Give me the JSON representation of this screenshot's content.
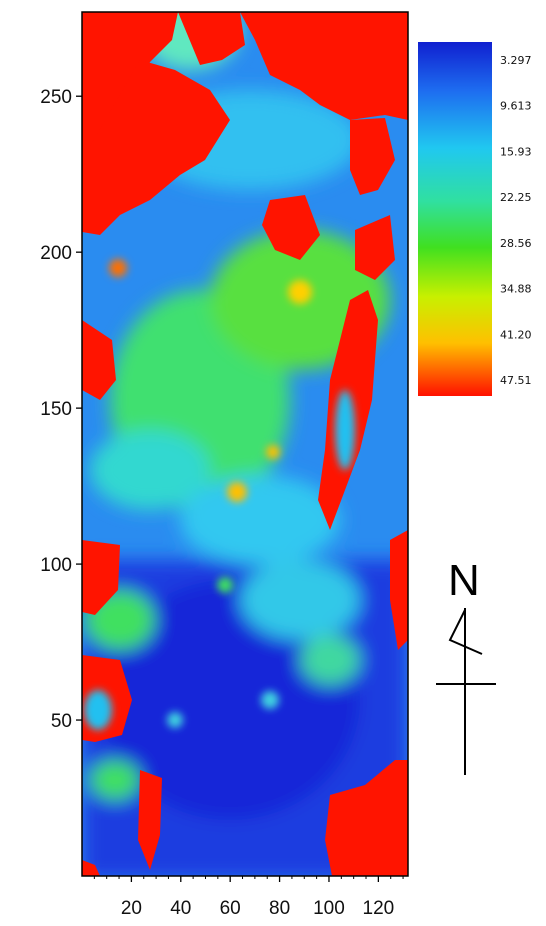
{
  "chart_data": {
    "type": "heatmap",
    "title": "",
    "xlabel": "",
    "ylabel": "",
    "xlim": [
      0,
      132
    ],
    "ylim": [
      0,
      277
    ],
    "x_ticks": [
      20,
      40,
      60,
      80,
      100,
      120
    ],
    "x_tick_labels": [
      "20",
      "40",
      "60",
      "80",
      "100",
      "120"
    ],
    "y_ticks": [
      50,
      100,
      150,
      200,
      250
    ],
    "y_tick_labels": [
      "50",
      "100",
      "150",
      "200",
      "250"
    ],
    "colorscale": {
      "labels": [
        "3.297",
        "9.613",
        "15.93",
        "22.25",
        "28.56",
        "34.88",
        "41.20",
        "47.51"
      ],
      "values": [
        3.297,
        9.613,
        15.93,
        22.25,
        28.56,
        34.88,
        41.2,
        47.51
      ],
      "colors": [
        "#1020d0",
        "#1e6ef0",
        "#20c8f0",
        "#30e0a0",
        "#40e020",
        "#c8f000",
        "#ffc000",
        "#ff1000"
      ]
    },
    "grid": false,
    "legend": "colorbar right",
    "regions": [
      {
        "zone": "top-left",
        "x": [
          0,
          60
        ],
        "y": [
          195,
          277
        ],
        "value": 47.5
      },
      {
        "zone": "top band",
        "x": [
          60,
          132
        ],
        "y": [
          220,
          277
        ],
        "value": 44
      },
      {
        "zone": "upper-middle",
        "x": [
          20,
          110
        ],
        "y": [
          140,
          215
        ],
        "value": 20
      },
      {
        "zone": "right-middle",
        "x": [
          100,
          120
        ],
        "y": [
          110,
          180
        ],
        "value": 46
      },
      {
        "zone": "middle",
        "x": [
          10,
          100
        ],
        "y": [
          90,
          140
        ],
        "value": 14
      },
      {
        "zone": "lower",
        "x": [
          10,
          110
        ],
        "y": [
          20,
          85
        ],
        "value": 6
      },
      {
        "zone": "bottom-right",
        "x": [
          100,
          132
        ],
        "y": [
          0,
          40
        ],
        "value": 47.5
      },
      {
        "zone": "left edge",
        "x": [
          0,
          15
        ],
        "y": [
          40,
          100
        ],
        "value": 45
      }
    ]
  },
  "north_arrow": {
    "letter": "N"
  }
}
